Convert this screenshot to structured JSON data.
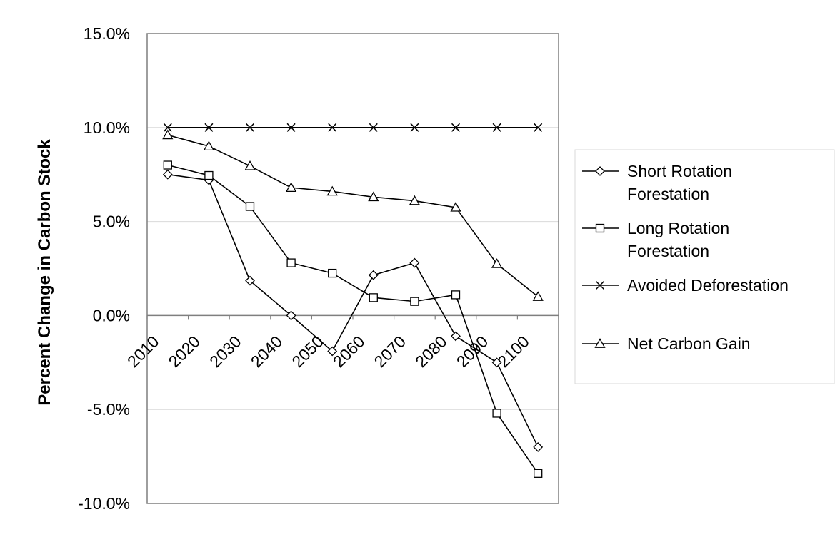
{
  "chart_data": {
    "type": "line",
    "title": "",
    "xlabel": "",
    "ylabel": "Percent Change in Carbon Stock",
    "x": [
      2015,
      2025,
      2035,
      2045,
      2055,
      2065,
      2075,
      2085,
      2095,
      2105
    ],
    "x_tick_labels": [
      "2010",
      "2020",
      "2030",
      "2040",
      "2050",
      "2060",
      "2070",
      "2080",
      "2090",
      "2100"
    ],
    "y_tick_labels": [
      "15.0%",
      "10.0%",
      "5.0%",
      "0.0%",
      "-5.0%",
      "-10.0%"
    ],
    "y_ticks": [
      15,
      10,
      5,
      0,
      -5,
      -10
    ],
    "ylim": [
      -10,
      15
    ],
    "grid": true,
    "legend_position": "right",
    "series": [
      {
        "name": "Short Rotation Forestation",
        "marker": "diamond",
        "values": [
          7.5,
          7.2,
          1.85,
          0.0,
          -1.9,
          2.15,
          2.8,
          -1.1,
          -2.5,
          -7.0
        ]
      },
      {
        "name": "Long Rotation Forestation",
        "marker": "square",
        "values": [
          8.0,
          7.45,
          5.8,
          2.8,
          2.25,
          0.95,
          0.75,
          1.1,
          -5.2,
          -8.4
        ]
      },
      {
        "name": "Avoided Deforestation",
        "marker": "x",
        "values": [
          10.0,
          10.0,
          10.0,
          10.0,
          10.0,
          10.0,
          10.0,
          10.0,
          10.0,
          10.0
        ]
      },
      {
        "name": "Net Carbon Gain",
        "marker": "triangle",
        "values": [
          9.6,
          9.0,
          7.95,
          6.8,
          6.6,
          6.3,
          6.1,
          5.75,
          2.75,
          1.0
        ]
      }
    ],
    "legend_labels": [
      [
        "Short Rotation",
        "Forestation"
      ],
      [
        "Long Rotation",
        "Forestation"
      ],
      [
        "Avoided Deforestation"
      ],
      [
        "Net Carbon Gain"
      ]
    ],
    "colors": {
      "line": "#000000",
      "frame": "#7f7f7f",
      "grid": "#d9d9d9",
      "marker_fill": "#ffffff"
    }
  }
}
